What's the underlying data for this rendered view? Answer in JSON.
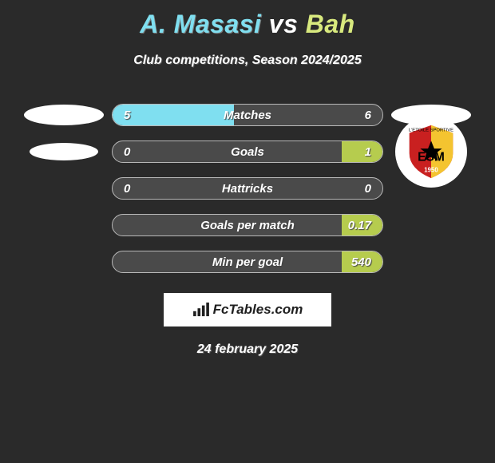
{
  "title": {
    "player1": "A. Masasi",
    "vs": "vs",
    "player2": "Bah",
    "color_p1": "#7fdff0",
    "color_vs": "#ffffff",
    "color_p2": "#d8e97e"
  },
  "subtitle": "Club competitions, Season 2024/2025",
  "bars": {
    "track_bg": "#4a4a4a",
    "border": "#b8b8b8",
    "left_fill": "#7fdff0",
    "right_fill": "#b6cc4e"
  },
  "rows": [
    {
      "label": "Matches",
      "left": "5",
      "right": "6",
      "left_pct": 45,
      "right_pct": 0
    },
    {
      "label": "Goals",
      "left": "0",
      "right": "1",
      "left_pct": 0,
      "right_pct": 15
    },
    {
      "label": "Hattricks",
      "left": "0",
      "right": "0",
      "left_pct": 0,
      "right_pct": 0
    },
    {
      "label": "Goals per match",
      "left": "",
      "right": "0.17",
      "left_pct": 0,
      "right_pct": 15
    },
    {
      "label": "Min per goal",
      "left": "",
      "right": "540",
      "left_pct": 0,
      "right_pct": 15
    }
  ],
  "fctables": "FcTables.com",
  "date": "24 february 2025",
  "esm_badge": {
    "letters": "ESM",
    "year": "1950",
    "red": "#c92020",
    "yellow": "#f4c430",
    "black": "#000"
  }
}
